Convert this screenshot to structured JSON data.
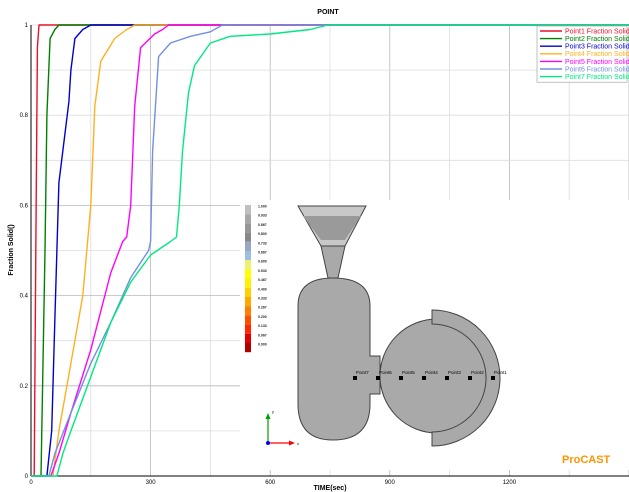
{
  "chart_data": {
    "type": "line",
    "title": "POINT",
    "xlabel": "TIME(sec)",
    "ylabel": "Fraction Solid()",
    "xlim": [
      0,
      1500
    ],
    "ylim": [
      0,
      1
    ],
    "xticks": [
      0,
      300,
      600,
      900,
      1200
    ],
    "yticks": [
      0,
      0.2,
      0.4,
      0.6,
      0.8,
      1
    ],
    "xtick_labels": [
      "0",
      "300",
      "600",
      "900",
      "1200"
    ],
    "ytick_labels": [
      "0",
      "0.2",
      "0.4",
      "0.6",
      "0.8",
      "1"
    ],
    "grid": true,
    "legend_position": "top-right",
    "series": [
      {
        "name": "Point1 Fraction Solid",
        "color": "#e8102a",
        "x": [
          0,
          8,
          12,
          16,
          20,
          500,
          1500
        ],
        "y": [
          0,
          0,
          0.5,
          0.95,
          1,
          1,
          1
        ]
      },
      {
        "name": "Point2 Fraction Solid",
        "color": "#008000",
        "x": [
          0,
          25,
          35,
          40,
          48,
          60,
          70,
          500,
          1500
        ],
        "y": [
          0,
          0,
          0.5,
          0.8,
          0.97,
          0.99,
          1,
          1,
          1
        ]
      },
      {
        "name": "Point3 Fraction Solid",
        "color": "#0000d0",
        "x": [
          0,
          40,
          52,
          60,
          70,
          95,
          100,
          110,
          130,
          150,
          1500
        ],
        "y": [
          0,
          0,
          0.1,
          0.35,
          0.65,
          0.83,
          0.9,
          0.97,
          0.99,
          1,
          1
        ]
      },
      {
        "name": "Point4 Fraction Solid",
        "color": "#ffb020",
        "x": [
          0,
          55,
          70,
          100,
          130,
          150,
          160,
          175,
          210,
          240,
          260,
          1500
        ],
        "y": [
          0,
          0,
          0.1,
          0.25,
          0.4,
          0.6,
          0.82,
          0.92,
          0.97,
          0.99,
          1,
          1
        ]
      },
      {
        "name": "Point5 Fraction Solid",
        "color": "#ff00ff",
        "x": [
          0,
          50,
          70,
          100,
          150,
          200,
          230,
          240,
          250,
          260,
          275,
          310,
          330,
          345,
          1500
        ],
        "y": [
          0,
          0,
          0.05,
          0.14,
          0.28,
          0.45,
          0.52,
          0.53,
          0.6,
          0.82,
          0.95,
          0.98,
          0.99,
          1,
          1
        ]
      },
      {
        "name": "Point6 Fraction Solid",
        "color": "#7090e0",
        "x": [
          0,
          45,
          60,
          100,
          150,
          200,
          250,
          280,
          295,
          300,
          305,
          320,
          350,
          400,
          450,
          480,
          1500
        ],
        "y": [
          0,
          0,
          0.05,
          0.14,
          0.25,
          0.34,
          0.44,
          0.48,
          0.5,
          0.52,
          0.72,
          0.93,
          0.96,
          0.975,
          0.985,
          1,
          1
        ]
      },
      {
        "name": "Point7 Fraction Solid",
        "color": "#00e880",
        "x": [
          0,
          65,
          80,
          100,
          150,
          200,
          250,
          300,
          350,
          365,
          372,
          380,
          395,
          410,
          450,
          500,
          600,
          700,
          745,
          760,
          1500
        ],
        "y": [
          0,
          0,
          0.05,
          0.1,
          0.22,
          0.34,
          0.43,
          0.49,
          0.52,
          0.53,
          0.6,
          0.72,
          0.85,
          0.91,
          0.96,
          0.975,
          0.98,
          0.99,
          1,
          1,
          1
        ]
      }
    ]
  },
  "inset": {
    "colorbar_labels": [
      "1.000",
      "0.933",
      "0.867",
      "0.800",
      "0.733",
      "0.667",
      "0.600",
      "0.533",
      "0.467",
      "0.400",
      "0.333",
      "0.267",
      "0.200",
      "0.133",
      "0.067",
      "0.000"
    ],
    "colorbar_colors": [
      "#c0c0c0",
      "#a8a8a8",
      "#989898",
      "#888888",
      "#98a8c0",
      "#9ec0e0",
      "#f0f070",
      "#ffff00",
      "#fff000",
      "#ffd000",
      "#ffa800",
      "#ff8000",
      "#ff5000",
      "#ff2800",
      "#e00000",
      "#b00000"
    ],
    "probe_labels": [
      "Point7",
      "Point6",
      "Point5",
      "Point4",
      "Point3",
      "Point2",
      "Point1"
    ],
    "axis_y": "y",
    "axis_x": "x",
    "logo": "ProCAST",
    "logo_color": "#ff9400"
  }
}
